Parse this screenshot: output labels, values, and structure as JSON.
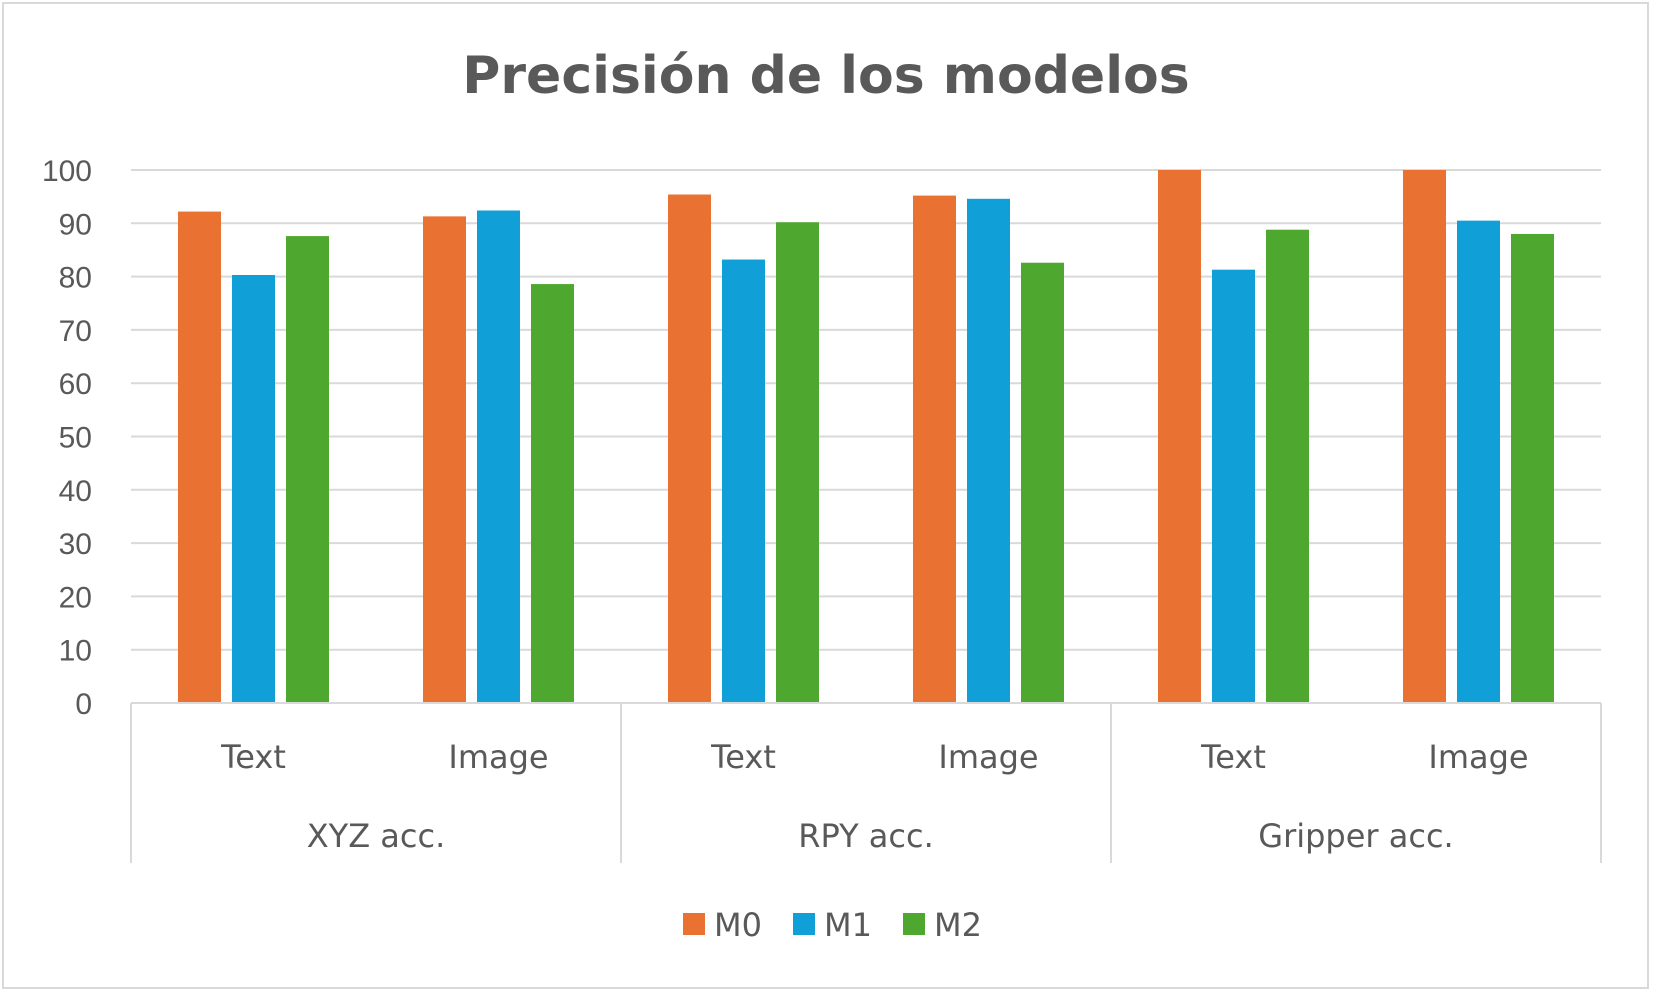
{
  "chart_data": {
    "type": "bar",
    "title": "Precisión de los modelos",
    "groups": [
      "XYZ acc.",
      "RPY acc.",
      "Gripper acc."
    ],
    "subcategories": [
      "Text",
      "Image"
    ],
    "categories": [
      "XYZ acc. / Text",
      "XYZ acc. / Image",
      "RPY acc. / Text",
      "RPY acc. / Image",
      "Gripper acc. / Text",
      "Gripper acc. / Image"
    ],
    "series": [
      {
        "name": "M0",
        "color": "#E97132",
        "values": [
          92.2,
          91.3,
          95.4,
          95.2,
          100,
          100
        ]
      },
      {
        "name": "M1",
        "color": "#119FD8",
        "values": [
          80.3,
          92.4,
          83.2,
          94.6,
          81.3,
          90.5
        ]
      },
      {
        "name": "M2",
        "color": "#4EA72E",
        "values": [
          87.6,
          78.6,
          90.2,
          82.6,
          88.8,
          88.0
        ]
      }
    ],
    "ylim": [
      0,
      100
    ],
    "yticks": [
      0,
      10,
      20,
      30,
      40,
      50,
      60,
      70,
      80,
      90,
      100
    ],
    "grid": true,
    "legend_position": "bottom"
  }
}
